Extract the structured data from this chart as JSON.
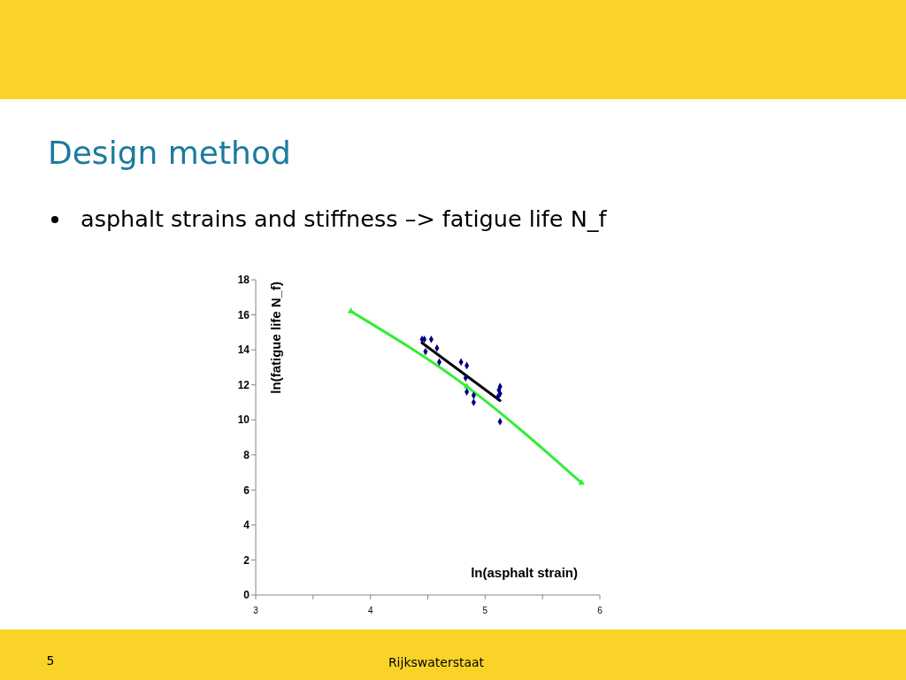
{
  "chart_data": {
    "type": "scatter",
    "title": "Design method",
    "subtitle": "asphalt strains and stiffness –> fatigue life N_f",
    "xlabel": "ln(asphalt strain)",
    "ylabel": "ln(fatigue life N_f)",
    "annotations": [
      "5",
      "Rijkswaterstaat"
    ],
    "xlim": [
      3,
      6
    ],
    "xticks": [
      3,
      {
        "value": 3.5,
        "label": null
      },
      4,
      {
        "value": 4.5,
        "label": null
      },
      5,
      {
        "value": 5.5,
        "label": null
      },
      6
    ],
    "ylim": [
      0,
      18
    ],
    "yticks": [
      0,
      2,
      4,
      6,
      8,
      10,
      12,
      14,
      16,
      18
    ],
    "series": [
      {
        "type": "scatter",
        "color": "#000080",
        "marker": "diamond",
        "x": [
          4.45,
          4.47,
          4.53,
          4.48,
          4.58,
          4.6,
          4.79,
          4.84,
          4.83,
          4.84,
          4.9,
          4.9,
          5.13,
          5.12,
          5.13,
          5.11,
          5.13
        ],
        "values": [
          14.6,
          14.6,
          14.6,
          13.9,
          14.1,
          13.3,
          13.3,
          13.1,
          12.4,
          11.6,
          11.4,
          11.0,
          11.9,
          11.7,
          11.5,
          11.3,
          9.9
        ]
      },
      {
        "type": "line",
        "color": "#000000",
        "x": [
          4.45,
          5.13
        ],
        "values": [
          14.4,
          11.1
        ]
      },
      {
        "type": "line",
        "color": "#33ee33",
        "marker": "triangle",
        "x": [
          3.83,
          4.84,
          5.84
        ],
        "values": [
          16.2,
          11.9,
          6.4
        ]
      }
    ]
  }
}
